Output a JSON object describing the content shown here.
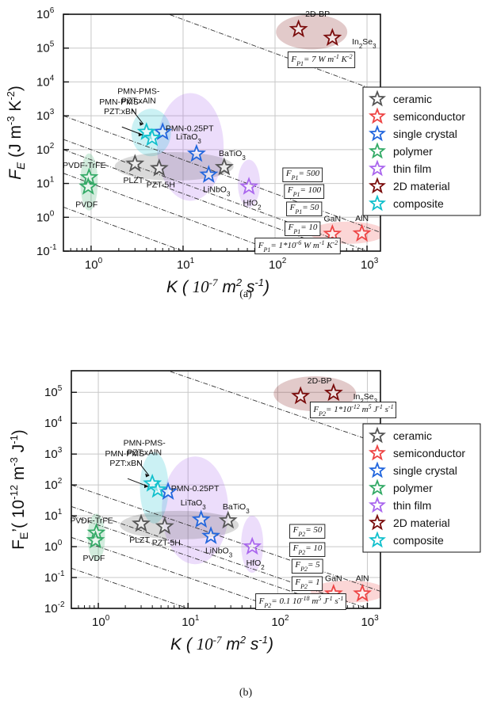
{
  "series_styles": [
    {
      "name": "ceramic",
      "color": "#555555"
    },
    {
      "name": "semiconductor",
      "color": "#ee4444"
    },
    {
      "name": "single crystal",
      "color": "#2266dd"
    },
    {
      "name": "polymer",
      "color": "#33aa66"
    },
    {
      "name": "thin film",
      "color": "#aa66ee"
    },
    {
      "name": "2D material",
      "color": "#7a0c0c"
    },
    {
      "name": "composite",
      "color": "#11c0cc"
    }
  ],
  "chart_data": [
    {
      "type": "scatter",
      "panel_label": "(a)",
      "xlabel": {
        "base": "K (",
        "sup": "",
        "rest": "10",
        "exp": "-7",
        "unit": " m",
        "unit_exp": "2",
        "tail": " s",
        "tail_exp": "-1",
        "close": ")"
      },
      "ylabel": {
        "base": "F",
        "sub": "E",
        "rest": " (J m",
        "exp1": "-3",
        "mid": " K",
        "exp2": "-2",
        "close": ")"
      },
      "xscale": "log",
      "yscale": "log",
      "xlim": [
        0.5,
        1400
      ],
      "ylim": [
        0.1,
        1000000
      ],
      "xticks": [
        {
          "v": 1,
          "b": "10",
          "e": "0"
        },
        {
          "v": 10,
          "b": "10",
          "e": "1"
        },
        {
          "v": 100,
          "b": "10",
          "e": "2"
        },
        {
          "v": 1000,
          "b": "10",
          "e": "3"
        }
      ],
      "yticks": [
        {
          "v": 0.1,
          "b": "10",
          "e": "-1"
        },
        {
          "v": 1,
          "b": "10",
          "e": "0"
        },
        {
          "v": 10,
          "b": "10",
          "e": "1"
        },
        {
          "v": 100,
          "b": "10",
          "e": "2"
        },
        {
          "v": 1000,
          "b": "10",
          "e": "3"
        },
        {
          "v": 10000,
          "b": "10",
          "e": "4"
        },
        {
          "v": 100000,
          "b": "10",
          "e": "5"
        },
        {
          "v": 1000000,
          "b": "10",
          "e": "6"
        }
      ],
      "grid": true,
      "legend": "right",
      "series": [
        {
          "name": "ceramic",
          "points": [
            {
              "x": 3.0,
              "y": 38,
              "label": "PLZT"
            },
            {
              "x": 5.5,
              "y": 28,
              "label": "PZT-5H"
            },
            {
              "x": 28,
              "y": 30,
              "label": "BaTiO3"
            }
          ]
        },
        {
          "name": "semiconductor",
          "points": [
            {
              "x": 420,
              "y": 0.32,
              "label": "GaN"
            },
            {
              "x": 880,
              "y": 0.33,
              "label": "AlN"
            }
          ]
        },
        {
          "name": "single crystal",
          "points": [
            {
              "x": 14,
              "y": 75,
              "label": "LiTaO3"
            },
            {
              "x": 19,
              "y": 18,
              "label": "LiNbO3"
            },
            {
              "x": 6.0,
              "y": 330,
              "label": "PMN-0.25PT"
            }
          ]
        },
        {
          "name": "polymer",
          "points": [
            {
              "x": 0.95,
              "y": 15,
              "label": "PVDF-TrFE"
            },
            {
              "x": 0.93,
              "y": 8,
              "label": "PVDF"
            }
          ]
        },
        {
          "name": "thin film",
          "points": [
            {
              "x": 52,
              "y": 8,
              "label": "HfO2"
            }
          ]
        },
        {
          "name": "2D material",
          "points": [
            {
              "x": 180,
              "y": 360000,
              "label": "2D-BP"
            },
            {
              "x": 420,
              "y": 200000,
              "label": "In2Se3"
            }
          ]
        },
        {
          "name": "composite",
          "points": [
            {
              "x": 4.0,
              "y": 330,
              "label": "PMN-PMS-PZT:xAlN"
            },
            {
              "x": 4.6,
              "y": 220,
              "label": "PMN-PMS-PZT:xBN"
            }
          ]
        }
      ],
      "iso_lines": [
        {
          "label": "F_P1 = 7 W m^-1 K^-2",
          "value": 7000000
        },
        {
          "label": "F_P1 = 500",
          "value": 500
        },
        {
          "label": "F_P1 = 100",
          "value": 100
        },
        {
          "label": "F_P1 = 50",
          "value": 50
        },
        {
          "label": "F_P1 = 10",
          "value": 10
        },
        {
          "label": "F_P1 = 1*10^-6 W m^-1 K^-2",
          "value": 1
        }
      ]
    },
    {
      "type": "scatter",
      "panel_label": "(b)",
      "xlabel": {
        "base": "K (",
        "rest": "10",
        "exp": "-7",
        "unit": " m",
        "unit_exp": "2",
        "tail": " s",
        "tail_exp": "-1",
        "close": ")"
      },
      "ylabel": {
        "base": "F",
        "sub": "E",
        "prime": "’",
        "rest": "( 10",
        "exp1": "-12",
        "mid": " m",
        "exp2": "-3",
        "tail": " J",
        "exp3": "-1",
        "close": ")"
      },
      "xscale": "log",
      "yscale": "log",
      "xlim": [
        0.5,
        1400
      ],
      "ylim": [
        0.01,
        500000
      ],
      "xticks": [
        {
          "v": 1,
          "b": "10",
          "e": "0"
        },
        {
          "v": 10,
          "b": "10",
          "e": "1"
        },
        {
          "v": 100,
          "b": "10",
          "e": "2"
        },
        {
          "v": 1000,
          "b": "10",
          "e": "3"
        }
      ],
      "yticks": [
        {
          "v": 0.01,
          "b": "10",
          "e": "-2"
        },
        {
          "v": 0.1,
          "b": "10",
          "e": "-1"
        },
        {
          "v": 1,
          "b": "10",
          "e": "0"
        },
        {
          "v": 10,
          "b": "10",
          "e": "1"
        },
        {
          "v": 100,
          "b": "10",
          "e": "2"
        },
        {
          "v": 1000,
          "b": "10",
          "e": "3"
        },
        {
          "v": 10000,
          "b": "10",
          "e": "4"
        },
        {
          "v": 100000,
          "b": "10",
          "e": "5"
        }
      ],
      "grid": true,
      "legend": "right",
      "series": [
        {
          "name": "ceramic",
          "points": [
            {
              "x": 3.0,
              "y": 5.5,
              "label": "PLZT"
            },
            {
              "x": 5.5,
              "y": 4.5,
              "label": "PZT-5H"
            },
            {
              "x": 28,
              "y": 7,
              "label": "BaTiO3"
            }
          ]
        },
        {
          "name": "semiconductor",
          "points": [
            {
              "x": 420,
              "y": 0.03,
              "label": "GaN"
            },
            {
              "x": 880,
              "y": 0.03,
              "label": "AlN"
            }
          ]
        },
        {
          "name": "single crystal",
          "points": [
            {
              "x": 14,
              "y": 7.5,
              "label": "LiTaO3"
            },
            {
              "x": 18,
              "y": 2.2,
              "label": "LiNbO3"
            },
            {
              "x": 6.0,
              "y": 60,
              "label": "PMN-0.25PT"
            }
          ]
        },
        {
          "name": "polymer",
          "points": [
            {
              "x": 0.95,
              "y": 2.8,
              "label": "PVDF-TrFE"
            },
            {
              "x": 0.93,
              "y": 1.6,
              "label": "PVDF"
            }
          ]
        },
        {
          "name": "thin film",
          "points": [
            {
              "x": 52,
              "y": 1.0,
              "label": "HfO2"
            }
          ]
        },
        {
          "name": "2D material",
          "points": [
            {
              "x": 180,
              "y": 75000,
              "label": "2D-BP"
            },
            {
              "x": 420,
              "y": 95000,
              "label": "In2Se3"
            }
          ]
        },
        {
          "name": "composite",
          "points": [
            {
              "x": 4.0,
              "y": 110,
              "label": "PMN-PMS-PZT:xAlN"
            },
            {
              "x": 4.6,
              "y": 70,
              "label": "PMN-PMS-PZT:xBN"
            }
          ]
        }
      ],
      "iso_lines": [
        {
          "label": "F_P2 = 1*10^-12 m^5 J^-1 s^-1",
          "value": 3000000
        },
        {
          "label": "F_P2 = 50",
          "value": 50
        },
        {
          "label": "F_P2 = 10",
          "value": 10
        },
        {
          "label": "F_P2 = 5",
          "value": 5
        },
        {
          "label": "F_P2 = 1",
          "value": 1
        },
        {
          "label": "F_P2 = 0.1 10^-18 m^5 J^-1 s^-1",
          "value": 0.1
        }
      ]
    }
  ]
}
